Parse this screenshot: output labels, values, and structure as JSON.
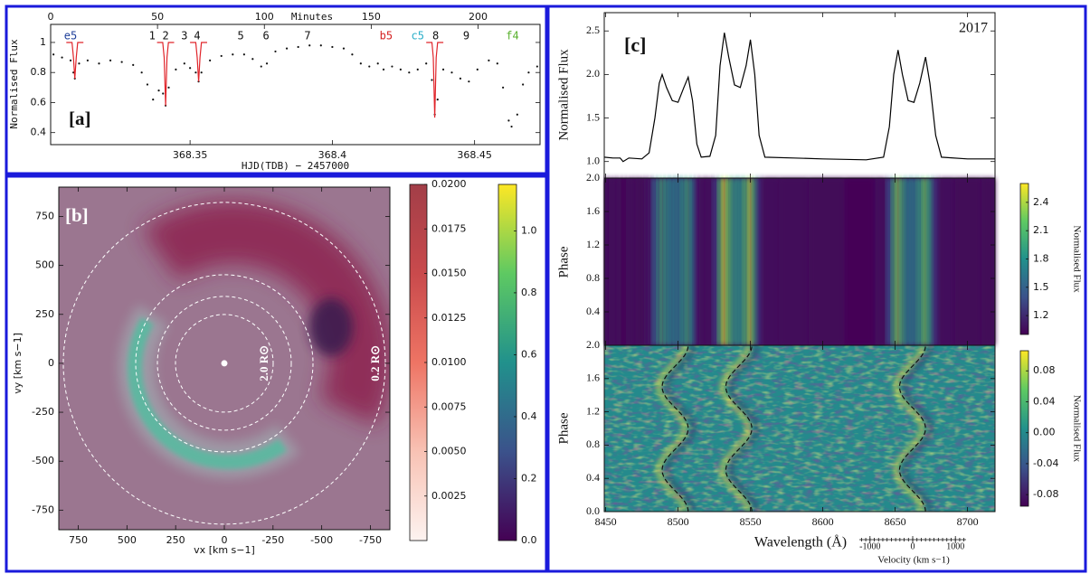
{
  "chart_data": [
    {
      "type": "scatter",
      "label": "[a]",
      "ylabel": "Normalised Flux",
      "xlabel": "HJD(TDB) − 2457000",
      "x2label": "Minutes",
      "xlim": [
        368.301,
        368.473
      ],
      "xticks": [
        368.35,
        368.4,
        368.45
      ],
      "x2lim": [
        0,
        229
      ],
      "x2ticks": [
        0,
        50,
        100,
        150,
        200
      ],
      "ylim": [
        0.32,
        1.12
      ],
      "yticks": [
        0.4,
        0.6,
        0.8,
        1
      ],
      "series": [
        {
          "color": "#111111",
          "x": [
            368.302,
            368.305,
            368.308,
            368.309,
            368.3095,
            368.311,
            368.314,
            368.318,
            368.322,
            368.326,
            368.33,
            368.333,
            368.335,
            368.337,
            368.339,
            368.3405,
            368.3414,
            368.3425,
            368.345,
            368.348,
            368.35,
            368.352,
            368.353,
            368.354,
            368.357,
            368.361,
            368.365,
            368.369,
            368.372,
            368.375,
            368.377,
            368.38,
            368.384,
            368.388,
            368.392,
            368.396,
            368.4,
            368.404,
            368.407,
            368.41,
            368.413,
            368.416,
            368.418,
            368.421,
            368.424,
            368.427,
            368.43,
            368.433,
            368.435,
            368.436,
            368.437,
            368.439,
            368.442,
            368.445,
            368.448,
            368.451,
            368.455,
            368.458,
            368.46,
            368.462,
            368.463,
            368.465,
            368.467,
            368.469,
            368.472
          ],
          "values": [
            0.92,
            0.9,
            0.88,
            0.8,
            0.76,
            0.86,
            0.88,
            0.86,
            0.88,
            0.87,
            0.85,
            0.8,
            0.72,
            0.62,
            0.68,
            0.66,
            0.58,
            0.7,
            0.82,
            0.86,
            0.83,
            0.8,
            0.74,
            0.8,
            0.88,
            0.91,
            0.92,
            0.92,
            0.89,
            0.84,
            0.86,
            0.94,
            0.96,
            0.97,
            0.98,
            0.98,
            0.97,
            0.96,
            0.92,
            0.86,
            0.84,
            0.86,
            0.82,
            0.84,
            0.82,
            0.8,
            0.82,
            0.86,
            0.75,
            0.52,
            0.62,
            0.82,
            0.8,
            0.76,
            0.74,
            0.82,
            0.88,
            0.86,
            0.7,
            0.48,
            0.44,
            0.52,
            0.72,
            0.8,
            0.84
          ]
        },
        {
          "color": "#e0242a",
          "type": "line",
          "x": [
            368.3065,
            368.3085,
            368.309,
            368.3095,
            368.31,
            368.3105,
            368.3125,
            null,
            368.3384,
            368.3404,
            368.3409,
            368.3414,
            368.3419,
            368.3424,
            368.3444,
            null,
            368.35,
            368.352,
            368.3525,
            368.353,
            368.3535,
            368.354,
            368.356,
            null,
            368.433,
            368.435,
            368.4355,
            368.436,
            368.4365,
            368.437,
            368.439
          ],
          "values": [
            1,
            1,
            0.9,
            0.76,
            0.9,
            1,
            1,
            null,
            1,
            1,
            0.9,
            0.58,
            0.9,
            1,
            1,
            null,
            1,
            1,
            0.9,
            0.74,
            0.9,
            1,
            1,
            null,
            1,
            1,
            0.9,
            0.5,
            0.9,
            1,
            1
          ]
        }
      ],
      "annotations": [
        {
          "text": "e5",
          "x": 368.308,
          "color": "#1f3f9a"
        },
        {
          "text": "1",
          "x": 368.3367,
          "color": "#111111"
        },
        {
          "text": "2",
          "x": 368.3414,
          "color": "#111111"
        },
        {
          "text": "3",
          "x": 368.348,
          "color": "#111111"
        },
        {
          "text": "4",
          "x": 368.3525,
          "color": "#111111"
        },
        {
          "text": "5",
          "x": 368.3678,
          "color": "#111111"
        },
        {
          "text": "6",
          "x": 368.3767,
          "color": "#111111"
        },
        {
          "text": "7",
          "x": 368.3913,
          "color": "#111111"
        },
        {
          "text": "b5",
          "x": 368.4189,
          "color": "#d42020"
        },
        {
          "text": "c5",
          "x": 368.43,
          "color": "#2aaec8"
        },
        {
          "text": "8",
          "x": 368.4363,
          "color": "#111111"
        },
        {
          "text": "9",
          "x": 368.4471,
          "color": "#111111"
        },
        {
          "text": "f4",
          "x": 368.4633,
          "color": "#58b02c"
        }
      ]
    },
    {
      "type": "heatmap",
      "label": "[b]",
      "xlabel": "vx [km s−1]",
      "ylabel": "vy [km s−1]",
      "xlim": [
        850,
        -850
      ],
      "xticks": [
        750,
        500,
        250,
        0,
        -250,
        -500,
        -750
      ],
      "ylim": [
        -850,
        900
      ],
      "yticks": [
        -750,
        -500,
        -250,
        0,
        250,
        500,
        750
      ],
      "annotations": [
        {
          "text": "2.0 R⊙"
        },
        {
          "text": "0.2 R⊙"
        }
      ],
      "colorbars": [
        {
          "lim": [
            0,
            0.02
          ],
          "colors": [
            "#fdf3f0",
            "#f8c2b4",
            "#ee7464",
            "#c94a4c",
            "#a23e48"
          ],
          "ticks": [
            0.0025,
            {
              "value": 0.005,
              "label": "0.0050"
            },
            0.0075,
            {
              "value": 0.01,
              "label": "0.0100"
            },
            0.0125,
            {
              "value": 0.015,
              "label": "0.0150"
            },
            0.0175,
            {
              "value": 0.02,
              "label": "0.0200"
            }
          ]
        },
        {
          "lim": [
            0,
            1.15
          ],
          "colors": [
            "#440154",
            "#3b528b",
            "#21918c",
            "#5ec962",
            "#fde725"
          ],
          "ticks": [
            {
              "value": 0,
              "label": "0.0"
            },
            0.2,
            0.4,
            0.6,
            0.8,
            {
              "value": 1,
              "label": "1.0"
            }
          ]
        }
      ]
    },
    {
      "type": "line",
      "label": "[c]",
      "annotation": "2017",
      "ylabel": "Normalised Flux",
      "color": "#000000",
      "ylim": [
        0.81,
        2.71
      ],
      "yticks": [
        {
          "value": 1,
          "label": "1.0"
        },
        1.5,
        {
          "value": 2,
          "label": "2.0"
        },
        2.5
      ],
      "x": [
        8449,
        8455,
        8460,
        8462,
        8466,
        8475,
        8480,
        8484,
        8487,
        8489,
        8492,
        8496,
        8500,
        8504,
        8507,
        8510,
        8513,
        8516,
        8522,
        8526,
        8529,
        8532,
        8535,
        8539,
        8543,
        8547,
        8550,
        8553,
        8556,
        8560,
        8580,
        8600,
        8630,
        8642,
        8646,
        8649,
        8652,
        8655,
        8659,
        8663,
        8667,
        8671,
        8674,
        8678,
        8682,
        8700,
        8719
      ],
      "values": [
        1.05,
        1.04,
        1.04,
        1,
        1.04,
        1.03,
        1.1,
        1.5,
        1.9,
        2,
        1.85,
        1.7,
        1.68,
        1.85,
        1.97,
        1.7,
        1.2,
        1.05,
        1.06,
        1.3,
        2.1,
        2.48,
        2.2,
        1.88,
        1.85,
        2.1,
        2.4,
        2,
        1.3,
        1.05,
        1.04,
        1.03,
        1.02,
        1.05,
        1.4,
        2,
        2.28,
        2,
        1.7,
        1.68,
        1.9,
        2.2,
        1.9,
        1.3,
        1.05,
        1.03,
        1.03
      ]
    },
    {
      "type": "heatmap",
      "ylabel": "Phase",
      "ylim": [
        0,
        2
      ],
      "yticks": [
        0.4,
        0.8,
        1.2,
        1.6,
        {
          "value": 2,
          "label": "2.0"
        }
      ],
      "colorbar": {
        "label": "Normalised Flux",
        "lim": [
          1,
          2.6
        ],
        "colors": [
          "#440154",
          "#3b528b",
          "#21918c",
          "#5ec962",
          "#fde725"
        ],
        "ticks": [
          1.2,
          1.5,
          1.8,
          2.1,
          2.4
        ]
      }
    },
    {
      "type": "heatmap",
      "ylabel": "Phase",
      "xlabel": "Wavelength (Å)",
      "xlim": [
        8449,
        8719
      ],
      "xticks": [
        8450,
        8500,
        8550,
        8600,
        8650,
        8700
      ],
      "ylim": [
        0,
        2
      ],
      "yticks": [
        {
          "value": 0,
          "label": "0.0"
        },
        0.4,
        0.8,
        1.2,
        1.6,
        {
          "value": 2,
          "label": "2.0"
        }
      ],
      "colorbar": {
        "label": "Normalised Flux",
        "lim": [
          -0.095,
          0.106
        ],
        "colors": [
          "#440154",
          "#3b528b",
          "#21918c",
          "#5ec962",
          "#fde725"
        ],
        "ticks": [
          0.08,
          0.04,
          {
            "value": 0,
            "label": "0.00"
          },
          -0.04,
          -0.08
        ]
      },
      "swave": {
        "centers": [
          8498,
          8542,
          8662
        ],
        "amplitude": 9
      },
      "velocity": {
        "label": "Velocity (km s−1)",
        "lim": [
          -1250,
          1250
        ],
        "ticks": [
          -1000,
          0,
          1000
        ]
      }
    }
  ]
}
